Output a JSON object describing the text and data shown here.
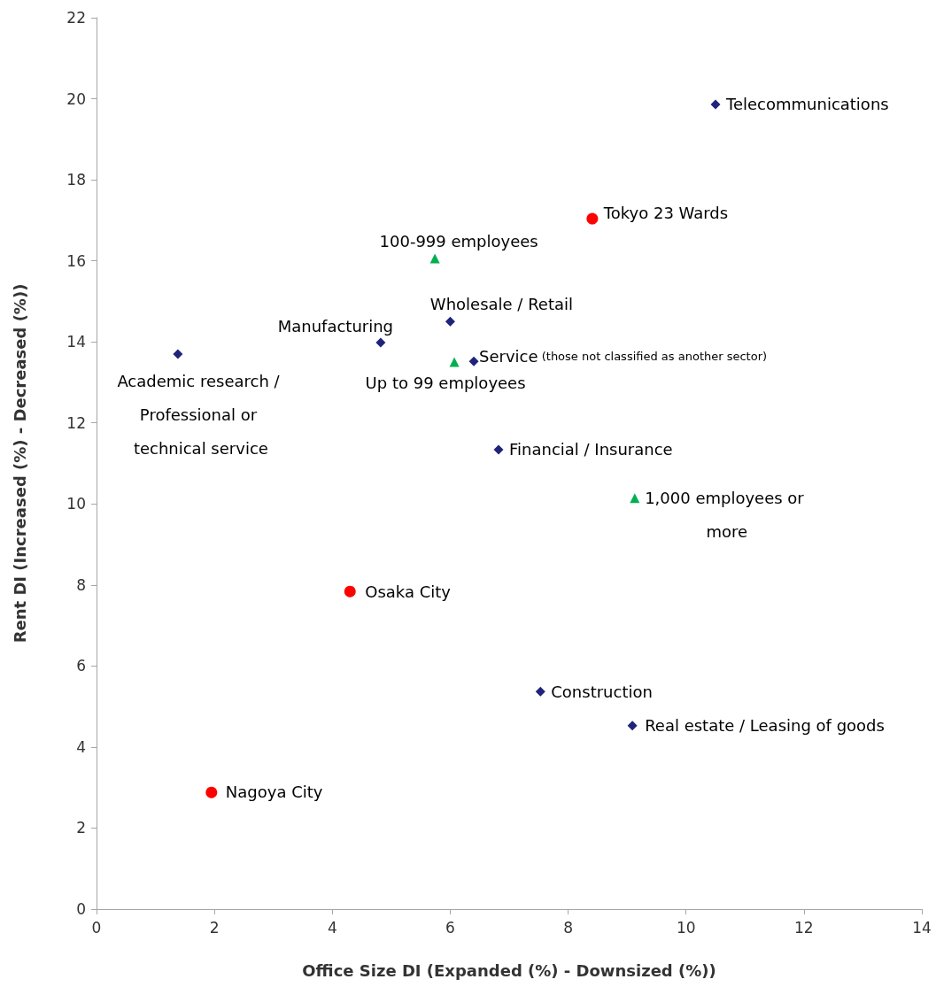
{
  "chart_data": {
    "type": "scatter",
    "xlabel": "Office Size DI (Expanded (%) - Downsized (%))",
    "ylabel": "Rent DI (Increased (%) - Decreased (%))",
    "xlim": [
      0,
      14
    ],
    "xticks": [
      0,
      2,
      4,
      6,
      8,
      10,
      12,
      14
    ],
    "ylim": [
      0,
      22
    ],
    "yticks": [
      0,
      2,
      4,
      6,
      8,
      10,
      12,
      14,
      16,
      18,
      20,
      22
    ],
    "grid": false,
    "series": [
      {
        "color": "#1f237a",
        "marker": "diamond",
        "x": [
          10.5,
          6.0,
          4.82,
          1.38,
          6.4,
          6.82,
          7.53,
          9.09
        ],
        "values": [
          19.86,
          14.5,
          13.98,
          13.7,
          13.52,
          11.34,
          5.37,
          4.53
        ]
      },
      {
        "color": "#ff0000",
        "marker": "circle",
        "x": [
          8.41,
          4.3,
          1.95
        ],
        "values": [
          17.04,
          7.84,
          2.88
        ]
      },
      {
        "color": "#00b050",
        "marker": "triangle",
        "x": [
          5.74,
          6.07,
          9.13
        ],
        "values": [
          16.06,
          13.5,
          10.14
        ]
      }
    ],
    "annotations": [
      {
        "text": "Telecommunications",
        "x": 10.5,
        "y": 19.86
      },
      {
        "text": "Wholesale / Retail",
        "x": 6.0,
        "y": 14.5
      },
      {
        "text": "Manufacturing",
        "x": 4.82,
        "y": 13.98
      },
      {
        "text": "Academic research / Professional or technical service",
        "x": 1.38,
        "y": 13.7
      },
      {
        "text": "Service (those not classified as another sector)",
        "x": 6.4,
        "y": 13.52
      },
      {
        "text": "Financial / Insurance",
        "x": 6.82,
        "y": 11.34
      },
      {
        "text": "Construction",
        "x": 7.53,
        "y": 5.37
      },
      {
        "text": "Real estate / Leasing of goods",
        "x": 9.09,
        "y": 4.53
      },
      {
        "text": "Tokyo 23 Wards",
        "x": 8.41,
        "y": 17.04
      },
      {
        "text": "Osaka City",
        "x": 4.3,
        "y": 7.84
      },
      {
        "text": "Nagoya City",
        "x": 1.95,
        "y": 2.88
      },
      {
        "text": "100-999 employees",
        "x": 5.74,
        "y": 16.06
      },
      {
        "text": "Up to 99 employees",
        "x": 6.07,
        "y": 13.5
      },
      {
        "text": "1,000 employees or more",
        "x": 9.13,
        "y": 10.14
      }
    ]
  }
}
